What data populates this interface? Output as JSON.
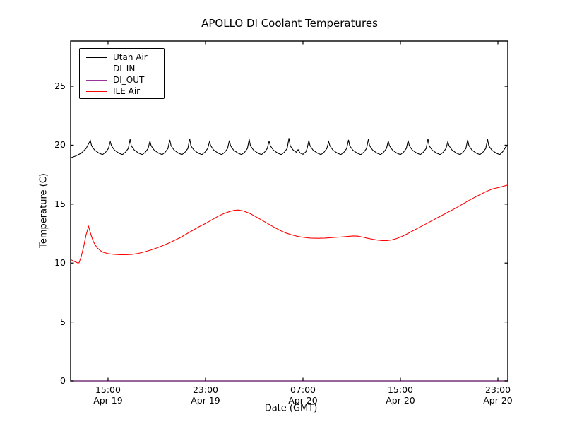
{
  "title": "APOLLO DI Coolant Temperatures",
  "chart_data": {
    "type": "line",
    "title": "APOLLO DI Coolant Temperatures",
    "xlabel": "Date (GMT)",
    "ylabel": "Temperature (C)",
    "x_unit": "hours since Apr 19 00:00 GMT",
    "xlim": [
      11.93,
      47.81
    ],
    "ylim": [
      0,
      28.84
    ],
    "grid": false,
    "legend_position": "upper left",
    "yticks": [
      0,
      5,
      10,
      15,
      20,
      25
    ],
    "xticks": [
      {
        "value": 15,
        "time": "15:00",
        "date": "Apr 19"
      },
      {
        "value": 23,
        "time": "23:00",
        "date": "Apr 19"
      },
      {
        "value": 31,
        "time": "07:00",
        "date": "Apr 20"
      },
      {
        "value": 39,
        "time": "15:00",
        "date": "Apr 20"
      },
      {
        "value": 47,
        "time": "23:00",
        "date": "Apr 20"
      }
    ],
    "series": [
      {
        "name": "Utah Air",
        "color": "#000000",
        "points": [
          [
            11.93,
            18.92
          ],
          [
            12.35,
            19.08
          ],
          [
            12.8,
            19.32
          ],
          [
            13.2,
            19.72
          ],
          [
            13.55,
            20.4
          ],
          [
            13.65,
            19.95
          ],
          [
            13.9,
            19.58
          ],
          [
            14.25,
            19.33
          ],
          [
            14.55,
            19.2
          ],
          [
            14.8,
            19.4
          ],
          [
            15.03,
            19.72
          ],
          [
            15.18,
            20.3
          ],
          [
            15.28,
            19.95
          ],
          [
            15.53,
            19.58
          ],
          [
            15.88,
            19.33
          ],
          [
            16.18,
            19.2
          ],
          [
            16.43,
            19.4
          ],
          [
            16.66,
            19.72
          ],
          [
            16.81,
            20.5
          ],
          [
            16.91,
            19.95
          ],
          [
            17.16,
            19.58
          ],
          [
            17.51,
            19.33
          ],
          [
            17.81,
            19.2
          ],
          [
            18.06,
            19.4
          ],
          [
            18.29,
            19.72
          ],
          [
            18.44,
            20.35
          ],
          [
            18.54,
            19.95
          ],
          [
            18.79,
            19.58
          ],
          [
            19.14,
            19.33
          ],
          [
            19.44,
            19.2
          ],
          [
            19.69,
            19.4
          ],
          [
            19.92,
            19.72
          ],
          [
            20.07,
            20.45
          ],
          [
            20.17,
            19.95
          ],
          [
            20.42,
            19.58
          ],
          [
            20.77,
            19.33
          ],
          [
            21.07,
            19.2
          ],
          [
            21.32,
            19.4
          ],
          [
            21.55,
            19.72
          ],
          [
            21.7,
            20.55
          ],
          [
            21.8,
            19.95
          ],
          [
            22.05,
            19.58
          ],
          [
            22.4,
            19.33
          ],
          [
            22.7,
            19.2
          ],
          [
            22.95,
            19.4
          ],
          [
            23.18,
            19.72
          ],
          [
            23.33,
            20.3
          ],
          [
            23.43,
            19.95
          ],
          [
            23.68,
            19.58
          ],
          [
            24.03,
            19.33
          ],
          [
            24.33,
            19.2
          ],
          [
            24.58,
            19.4
          ],
          [
            24.81,
            19.72
          ],
          [
            24.96,
            20.4
          ],
          [
            25.06,
            19.95
          ],
          [
            25.31,
            19.58
          ],
          [
            25.66,
            19.33
          ],
          [
            25.96,
            19.2
          ],
          [
            26.21,
            19.4
          ],
          [
            26.44,
            19.72
          ],
          [
            26.59,
            20.5
          ],
          [
            26.69,
            19.95
          ],
          [
            26.94,
            19.58
          ],
          [
            27.29,
            19.33
          ],
          [
            27.59,
            19.2
          ],
          [
            27.84,
            19.4
          ],
          [
            28.07,
            19.72
          ],
          [
            28.22,
            20.35
          ],
          [
            28.32,
            19.95
          ],
          [
            28.57,
            19.58
          ],
          [
            28.92,
            19.33
          ],
          [
            29.22,
            19.2
          ],
          [
            29.47,
            19.4
          ],
          [
            29.7,
            19.72
          ],
          [
            29.85,
            20.6
          ],
          [
            29.95,
            19.95
          ],
          [
            30.2,
            19.58
          ],
          [
            30.45,
            19.4
          ],
          [
            30.6,
            19.62
          ],
          [
            30.75,
            19.35
          ],
          [
            31.0,
            19.22
          ],
          [
            31.25,
            19.45
          ],
          [
            31.35,
            19.75
          ],
          [
            31.48,
            20.4
          ],
          [
            31.58,
            19.95
          ],
          [
            31.83,
            19.58
          ],
          [
            32.18,
            19.33
          ],
          [
            32.48,
            19.2
          ],
          [
            32.73,
            19.4
          ],
          [
            32.96,
            19.72
          ],
          [
            33.11,
            20.3
          ],
          [
            33.21,
            19.95
          ],
          [
            33.46,
            19.58
          ],
          [
            33.81,
            19.33
          ],
          [
            34.11,
            19.2
          ],
          [
            34.36,
            19.4
          ],
          [
            34.59,
            19.72
          ],
          [
            34.74,
            20.45
          ],
          [
            34.84,
            19.95
          ],
          [
            35.09,
            19.58
          ],
          [
            35.44,
            19.33
          ],
          [
            35.74,
            19.2
          ],
          [
            35.99,
            19.4
          ],
          [
            36.22,
            19.72
          ],
          [
            36.37,
            20.5
          ],
          [
            36.47,
            19.95
          ],
          [
            36.72,
            19.58
          ],
          [
            37.07,
            19.33
          ],
          [
            37.37,
            19.2
          ],
          [
            37.62,
            19.4
          ],
          [
            37.85,
            19.72
          ],
          [
            38.0,
            20.35
          ],
          [
            38.1,
            19.95
          ],
          [
            38.35,
            19.58
          ],
          [
            38.7,
            19.33
          ],
          [
            39.0,
            19.2
          ],
          [
            39.25,
            19.4
          ],
          [
            39.48,
            19.72
          ],
          [
            39.63,
            20.4
          ],
          [
            39.73,
            19.95
          ],
          [
            39.98,
            19.58
          ],
          [
            40.33,
            19.33
          ],
          [
            40.63,
            19.2
          ],
          [
            40.88,
            19.4
          ],
          [
            41.11,
            19.72
          ],
          [
            41.26,
            20.55
          ],
          [
            41.36,
            19.95
          ],
          [
            41.61,
            19.58
          ],
          [
            41.96,
            19.33
          ],
          [
            42.26,
            19.2
          ],
          [
            42.51,
            19.4
          ],
          [
            42.74,
            19.72
          ],
          [
            42.89,
            20.3
          ],
          [
            42.99,
            19.95
          ],
          [
            43.24,
            19.58
          ],
          [
            43.59,
            19.33
          ],
          [
            43.89,
            19.2
          ],
          [
            44.14,
            19.4
          ],
          [
            44.37,
            19.72
          ],
          [
            44.52,
            20.45
          ],
          [
            44.62,
            19.95
          ],
          [
            44.87,
            19.58
          ],
          [
            45.22,
            19.33
          ],
          [
            45.52,
            19.2
          ],
          [
            45.77,
            19.4
          ],
          [
            46.0,
            19.72
          ],
          [
            46.15,
            20.5
          ],
          [
            46.25,
            19.95
          ],
          [
            46.5,
            19.58
          ],
          [
            46.85,
            19.33
          ],
          [
            47.15,
            19.2
          ],
          [
            47.4,
            19.45
          ],
          [
            47.65,
            19.85
          ],
          [
            47.81,
            20.0
          ]
        ]
      },
      {
        "name": "DI_IN",
        "color": "#ffa500",
        "points": [
          [
            11.93,
            0
          ],
          [
            47.81,
            0
          ]
        ]
      },
      {
        "name": "DI_OUT",
        "color": "#993399",
        "points": [
          [
            11.93,
            0
          ],
          [
            47.81,
            0
          ]
        ]
      },
      {
        "name": "ILE Air",
        "color": "#ff0000",
        "points": [
          [
            11.93,
            10.3
          ],
          [
            12.2,
            10.15
          ],
          [
            12.5,
            10.02
          ],
          [
            12.62,
            10.02
          ],
          [
            12.8,
            10.55
          ],
          [
            13.0,
            11.4
          ],
          [
            13.2,
            12.4
          ],
          [
            13.4,
            13.1
          ],
          [
            13.6,
            12.4
          ],
          [
            13.8,
            11.8
          ],
          [
            14.1,
            11.3
          ],
          [
            14.5,
            10.95
          ],
          [
            15.0,
            10.8
          ],
          [
            15.5,
            10.73
          ],
          [
            16.0,
            10.7
          ],
          [
            16.5,
            10.7
          ],
          [
            17.0,
            10.74
          ],
          [
            17.5,
            10.82
          ],
          [
            18.0,
            10.95
          ],
          [
            18.5,
            11.1
          ],
          [
            19.0,
            11.28
          ],
          [
            19.5,
            11.48
          ],
          [
            20.0,
            11.7
          ],
          [
            20.5,
            11.95
          ],
          [
            21.0,
            12.2
          ],
          [
            21.5,
            12.5
          ],
          [
            22.0,
            12.8
          ],
          [
            22.5,
            13.1
          ],
          [
            23.0,
            13.35
          ],
          [
            23.5,
            13.65
          ],
          [
            24.0,
            13.95
          ],
          [
            24.5,
            14.2
          ],
          [
            25.0,
            14.38
          ],
          [
            25.4,
            14.48
          ],
          [
            25.7,
            14.5
          ],
          [
            26.1,
            14.42
          ],
          [
            26.6,
            14.22
          ],
          [
            27.1,
            13.95
          ],
          [
            27.6,
            13.65
          ],
          [
            28.1,
            13.35
          ],
          [
            28.6,
            13.05
          ],
          [
            29.1,
            12.78
          ],
          [
            29.6,
            12.55
          ],
          [
            30.1,
            12.38
          ],
          [
            30.6,
            12.25
          ],
          [
            31.1,
            12.17
          ],
          [
            31.6,
            12.12
          ],
          [
            32.2,
            12.1
          ],
          [
            32.8,
            12.12
          ],
          [
            33.4,
            12.16
          ],
          [
            34.0,
            12.2
          ],
          [
            34.6,
            12.25
          ],
          [
            35.1,
            12.3
          ],
          [
            35.5,
            12.28
          ],
          [
            35.9,
            12.2
          ],
          [
            36.3,
            12.1
          ],
          [
            36.7,
            12.02
          ],
          [
            37.1,
            11.95
          ],
          [
            37.5,
            11.9
          ],
          [
            37.9,
            11.9
          ],
          [
            38.3,
            11.97
          ],
          [
            38.7,
            12.08
          ],
          [
            39.1,
            12.25
          ],
          [
            39.6,
            12.5
          ],
          [
            40.1,
            12.78
          ],
          [
            40.6,
            13.05
          ],
          [
            41.1,
            13.32
          ],
          [
            41.6,
            13.6
          ],
          [
            42.1,
            13.88
          ],
          [
            42.6,
            14.15
          ],
          [
            43.1,
            14.42
          ],
          [
            43.6,
            14.7
          ],
          [
            44.1,
            15.0
          ],
          [
            44.6,
            15.3
          ],
          [
            45.1,
            15.58
          ],
          [
            45.6,
            15.85
          ],
          [
            46.1,
            16.1
          ],
          [
            46.6,
            16.3
          ],
          [
            47.1,
            16.42
          ],
          [
            47.81,
            16.62
          ]
        ]
      }
    ]
  }
}
